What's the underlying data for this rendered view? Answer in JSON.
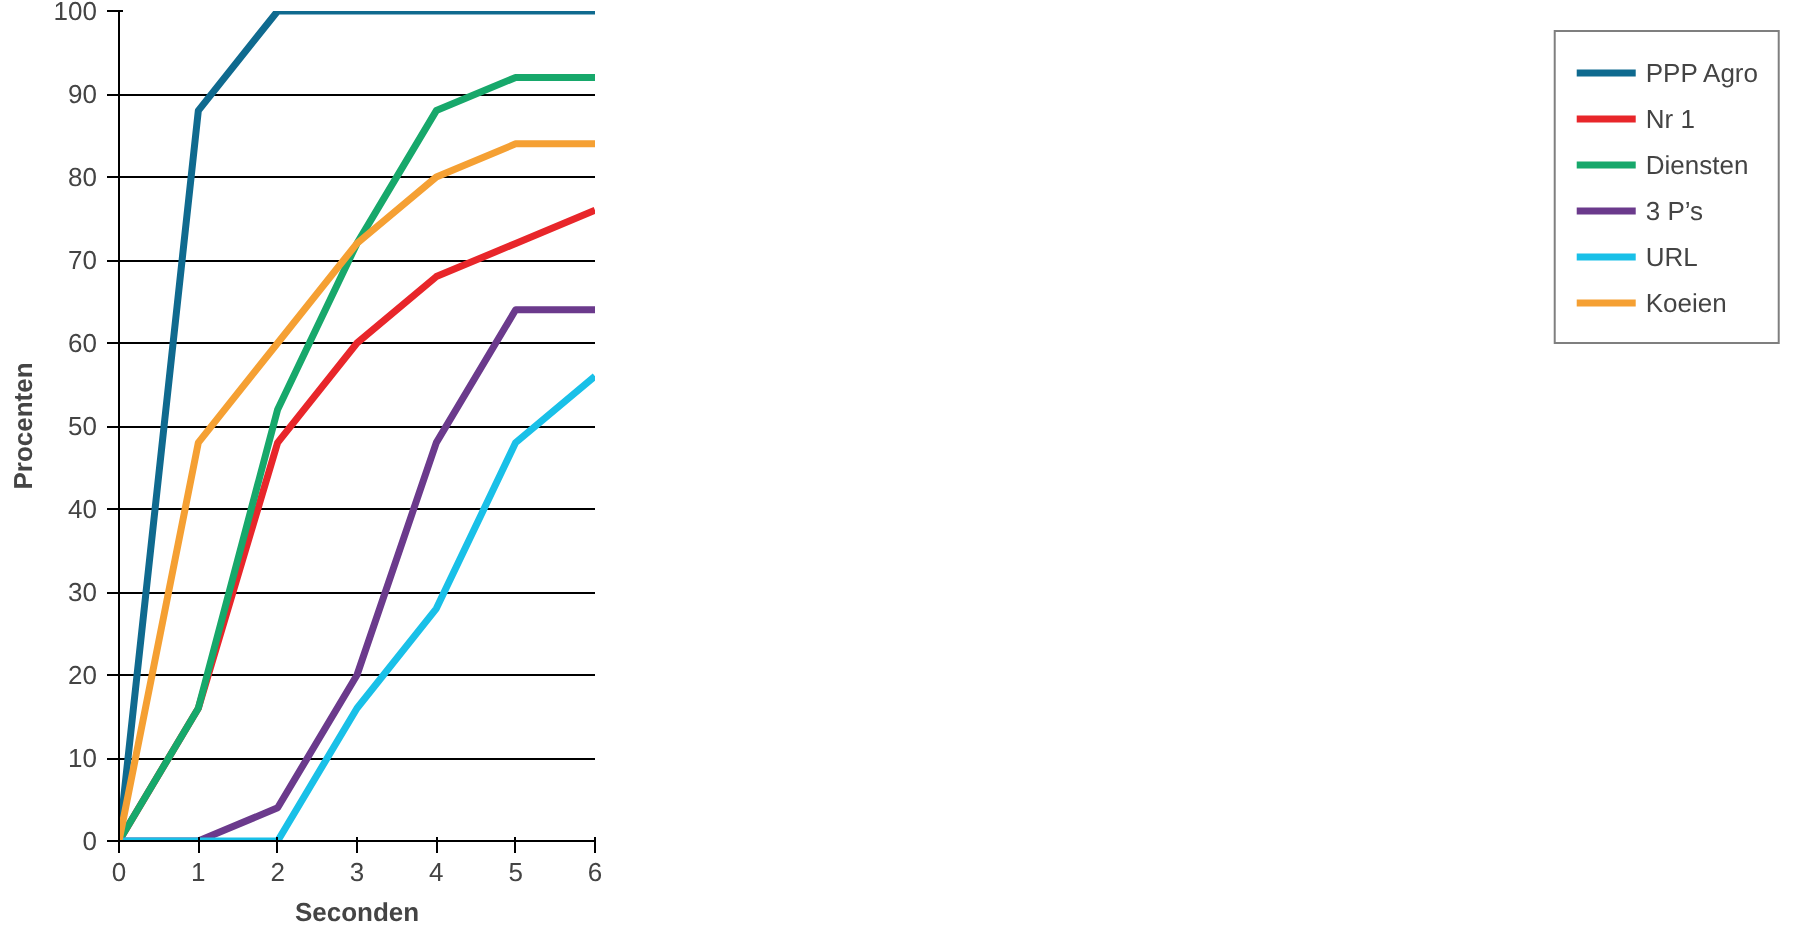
{
  "chart_data": {
    "type": "line",
    "xlabel": "Seconden",
    "ylabel": "Procenten",
    "x": [
      0,
      1,
      2,
      3,
      4,
      5,
      6
    ],
    "xlim": [
      0,
      6
    ],
    "xticks": [
      0,
      1,
      2,
      3,
      4,
      5,
      6
    ],
    "ylim": [
      0,
      100
    ],
    "yticks": [
      0,
      10,
      20,
      30,
      40,
      50,
      60,
      70,
      80,
      90,
      100
    ],
    "grid": "y",
    "legend": "right",
    "marker": "none",
    "line_style": "solid",
    "series": [
      {
        "name": "PPP Agro",
        "color": "#0f6a8f",
        "values": [
          0,
          88,
          100,
          100,
          100,
          100,
          100
        ]
      },
      {
        "name": "Nr 1",
        "color": "#e8262a",
        "values": [
          0,
          16,
          48,
          60,
          68,
          72,
          76
        ]
      },
      {
        "name": "Diensten",
        "color": "#17a86b",
        "values": [
          0,
          16,
          52,
          72,
          88,
          92,
          92
        ]
      },
      {
        "name": "3 P’s",
        "color": "#6b3a8c",
        "values": [
          0,
          0,
          4,
          20,
          48,
          64,
          64
        ]
      },
      {
        "name": "URL",
        "color": "#19c0e8",
        "values": [
          0,
          0,
          0,
          16,
          28,
          48,
          56
        ]
      },
      {
        "name": "Koeien",
        "color": "#f5a033",
        "values": [
          0,
          48,
          60,
          72,
          80,
          84,
          84
        ]
      }
    ]
  }
}
